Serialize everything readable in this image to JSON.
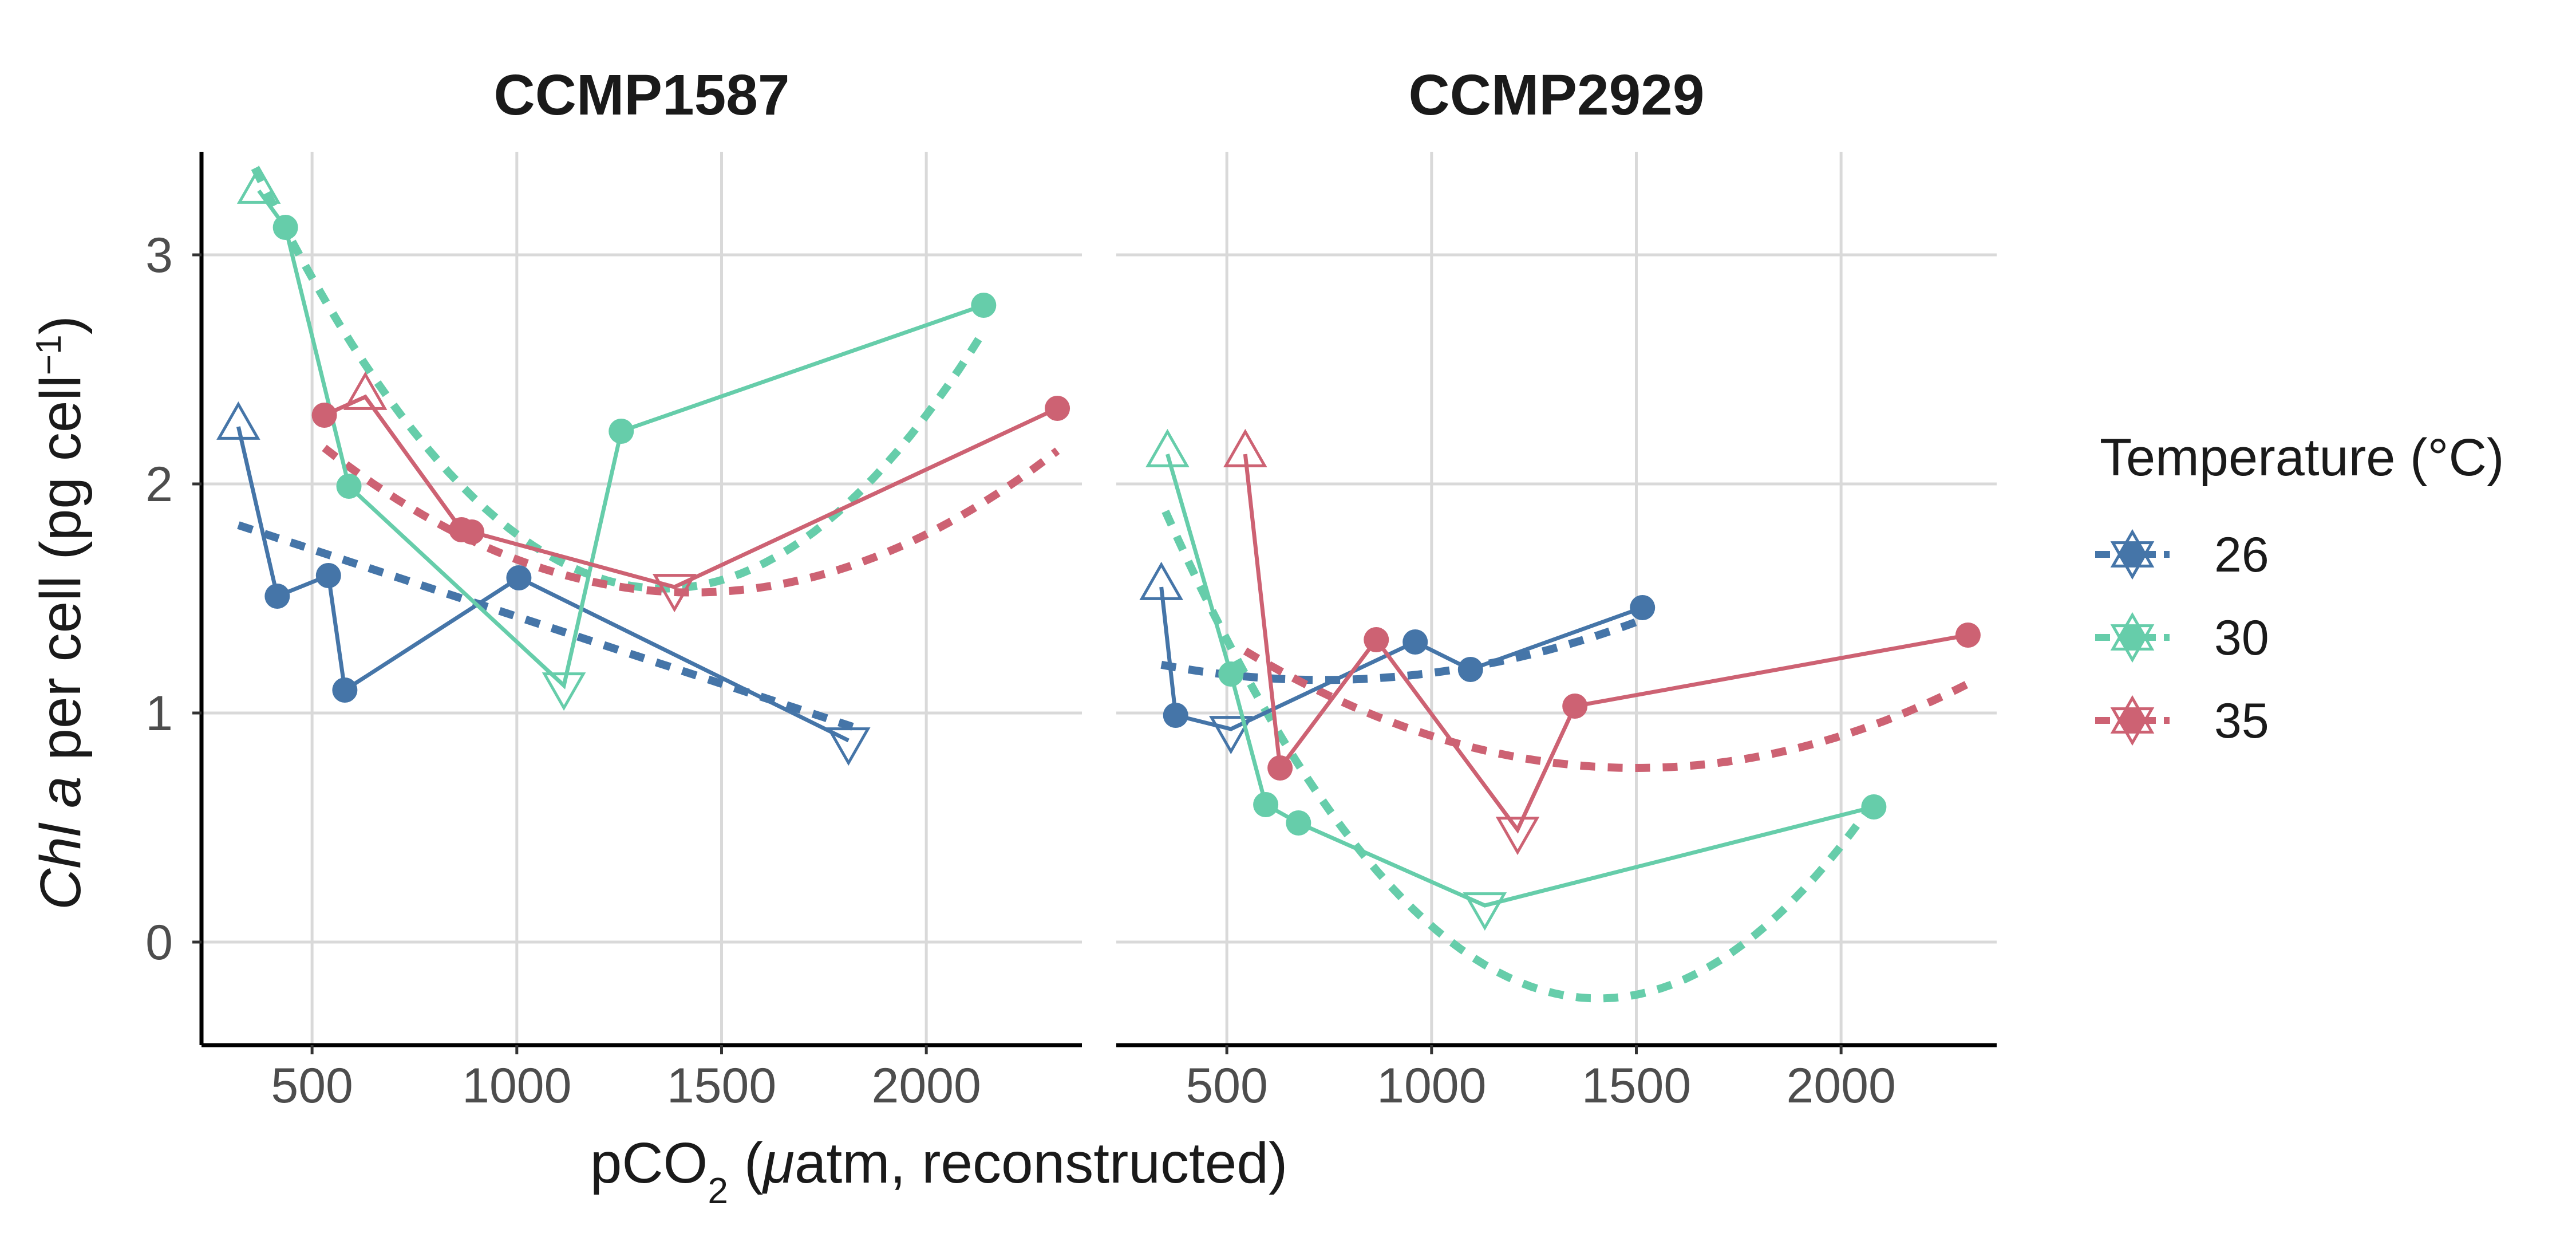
{
  "chart_data": {
    "type": "line",
    "y_label": {
      "italic": "Chl a",
      "main": " per cell (pg cell",
      "sup": "−1",
      "end": ")"
    },
    "x_label": {
      "pre": "pCO",
      "sub": "2",
      "mid": " (",
      "mu": "μ",
      "post": "atm, reconstructed)"
    },
    "xlim": [
      230,
      2380
    ],
    "ylim": [
      -0.45,
      3.45
    ],
    "x_ticks": [
      500,
      1000,
      1500,
      2000
    ],
    "x_tick_labels": [
      "500",
      "1000",
      "1500",
      "2000"
    ],
    "y_ticks": [
      0,
      1,
      2,
      3
    ],
    "y_tick_labels": [
      "0",
      "1",
      "2",
      "3"
    ],
    "grid": true,
    "legend": {
      "title": "Temperature (°C)",
      "placement": "right",
      "entries": [
        {
          "label": "26",
          "color": "#4575a8"
        },
        {
          "label": "30",
          "color": "#66cdaa"
        },
        {
          "label": "35",
          "color": "#cd6273"
        }
      ]
    },
    "panels": [
      {
        "title": "CCMP1587",
        "series": [
          {
            "temp": "26",
            "color": "#4575a8",
            "x": [
              320,
              415,
              540,
              580,
              1005,
              1810
            ],
            "y": [
              2.25,
              1.51,
              1.6,
              1.1,
              1.59,
              0.88
            ],
            "markers": [
              "up",
              "dot",
              "dot",
              "dot",
              "dot",
              "down"
            ],
            "fit": {
              "x": [
                320,
                1820
              ],
              "y": [
                1.82,
                0.94
              ],
              "curve": [
                0.0,
                -0.0005867,
                2.0077
              ]
            }
          },
          {
            "temp": "30",
            "color": "#66cdaa",
            "x": [
              370,
              435,
              590,
              1115,
              1255,
              2140
            ],
            "y": [
              3.28,
              3.12,
              1.99,
              1.12,
              2.23,
              2.78
            ],
            "markers": [
              "up",
              "dot",
              "dot",
              "down",
              "dot",
              "dot"
            ],
            "fit": {
              "x": [
                360,
                2140
              ],
              "y": [
                3.12,
                2.78
              ],
              "curve": [
                1.84e-06,
                -0.005,
                4.94
              ]
            }
          },
          {
            "temp": "35",
            "color": "#cd6273",
            "x": [
              530,
              630,
              865,
              890,
              1385,
              2320
            ],
            "y": [
              2.3,
              2.38,
              1.8,
              1.79,
              1.55,
              2.33
            ],
            "markers": [
              "dot",
              "up",
              "dot",
              "dot",
              "down",
              "dot"
            ],
            "fit": {
              "x": [
                530,
                2320
              ],
              "y": [
                2.31,
                2.31
              ],
              "curve": [
                7.8e-07,
                -0.00223,
                3.12
              ]
            }
          }
        ]
      },
      {
        "title": "CCMP2929",
        "series": [
          {
            "temp": "26",
            "color": "#4575a8",
            "x": [
              340,
              375,
              510,
              960,
              1095,
              1515
            ],
            "y": [
              1.55,
              0.99,
              0.93,
              1.31,
              1.19,
              1.46
            ],
            "markers": [
              "up",
              "dot",
              "down",
              "dot",
              "dot",
              "dot"
            ],
            "fit": {
              "x": [
                340,
                1515
              ],
              "y": [
                1.21,
                1.46
              ],
              "curve": [
                4.3e-07,
                -0.00063,
                1.375
              ]
            }
          },
          {
            "temp": "30",
            "color": "#66cdaa",
            "x": [
              355,
              510,
              595,
              675,
              1130,
              2080
            ],
            "y": [
              2.13,
              1.17,
              0.6,
              0.52,
              0.16,
              0.59
            ],
            "markers": [
              "up",
              "dot",
              "dot",
              "dot",
              "down",
              "dot"
            ],
            "fit": {
              "x": [
                350,
                2080
              ],
              "y": [
                1.8,
                0.57
              ],
              "curve": [
                1.9e-06,
                -0.00535,
                3.52
              ]
            }
          },
          {
            "temp": "35",
            "color": "#cd6273",
            "x": [
              545,
              630,
              865,
              1210,
              1350,
              2310
            ],
            "y": [
              2.13,
              0.76,
              1.32,
              0.49,
              1.03,
              1.34
            ],
            "markers": [
              "up",
              "dot",
              "dot",
              "down",
              "dot",
              "dot"
            ],
            "fit": {
              "x": [
                545,
                2310
              ],
              "y": [
                1.62,
                1.34
              ],
              "curve": [
                5.6e-07,
                -0.00168,
                2.02
              ]
            }
          }
        ]
      }
    ]
  }
}
